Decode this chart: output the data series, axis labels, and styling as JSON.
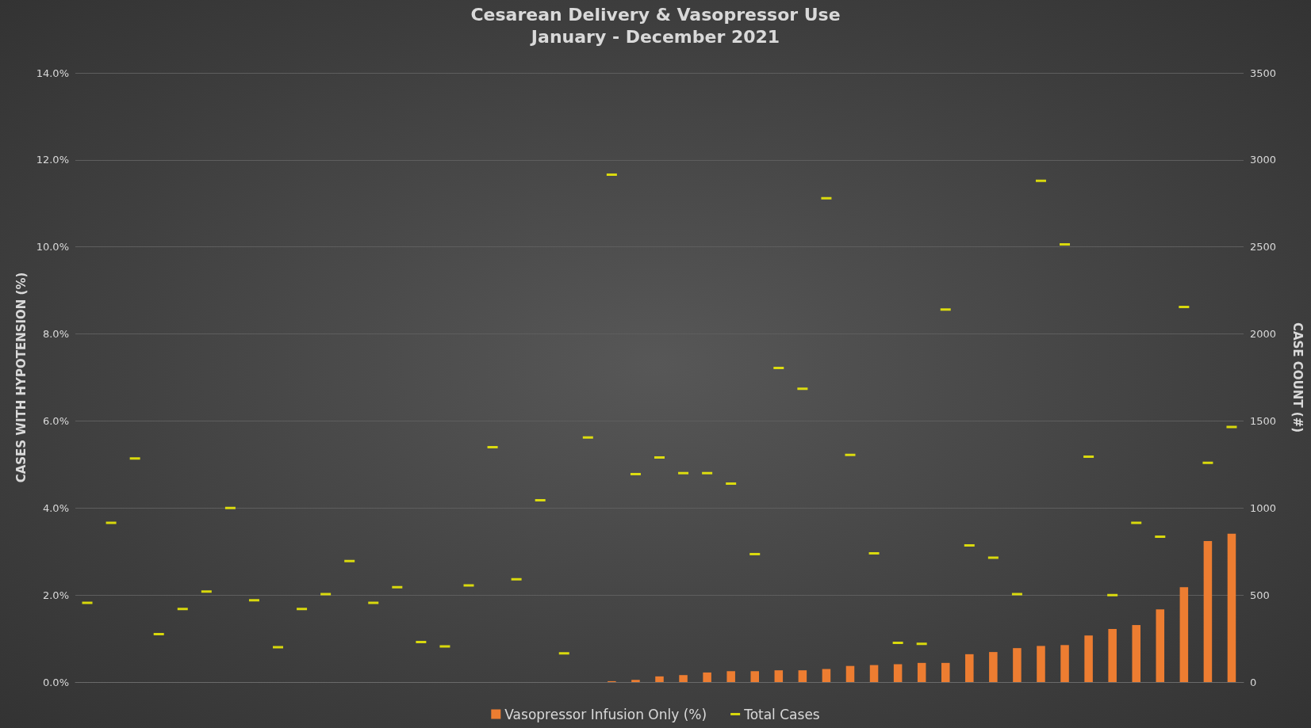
{
  "chart_data": {
    "type": "bar",
    "title": "Cesarean Delivery & Vasopressor Use",
    "subtitle": "January - December 2021",
    "ylabel": "CASES WITH HYPOTENSION (%)",
    "y2label": "CASE COUNT (#)",
    "categories": [
      null,
      null,
      null,
      null,
      null,
      null,
      null,
      null,
      null,
      null,
      null,
      null,
      null,
      null,
      null,
      null,
      null,
      null,
      null,
      null,
      null,
      null,
      null,
      null,
      null,
      null,
      null,
      null,
      null,
      null,
      null,
      null,
      null,
      null,
      null,
      null,
      null,
      null,
      null,
      null,
      null,
      null,
      null,
      null,
      null,
      null,
      null,
      null,
      null
    ],
    "series": [
      {
        "name": "Vasopressor Infusion Only (%)",
        "color": "#ed7d31",
        "values": [
          null,
          null,
          null,
          null,
          null,
          null,
          null,
          null,
          null,
          null,
          null,
          null,
          null,
          null,
          null,
          null,
          null,
          null,
          null,
          null,
          null,
          null,
          0.02,
          0.05,
          0.13,
          0.16,
          0.22,
          0.25,
          0.25,
          0.27,
          0.27,
          0.3,
          0.37,
          0.39,
          0.41,
          0.44,
          0.44,
          0.64,
          0.69,
          0.78,
          0.83,
          0.85,
          1.07,
          1.22,
          1.31,
          1.67,
          2.18,
          3.24,
          3.41
        ]
      },
      {
        "name": "Total Cases",
        "type": "scatter",
        "axis": "y2",
        "color": "#ffff00",
        "values": [
          455,
          915,
          1285,
          275,
          420,
          520,
          1000,
          470,
          200,
          420,
          505,
          695,
          455,
          545,
          230,
          205,
          555,
          1350,
          590,
          1045,
          165,
          1405,
          2915,
          1195,
          1290,
          1200,
          1200,
          1140,
          735,
          1805,
          1685,
          2780,
          1305,
          740,
          225,
          220,
          2140,
          785,
          715,
          505,
          2880,
          2515,
          1295,
          500,
          915,
          835,
          2155,
          1260,
          1465
        ]
      }
    ],
    "ylim": [
      0,
      14
    ],
    "yticks": [
      {
        "value": 0,
        "label": "0.0%"
      },
      {
        "value": 2,
        "label": "2.0%"
      },
      {
        "value": 4,
        "label": "4.0%"
      },
      {
        "value": 6,
        "label": "6.0%"
      },
      {
        "value": 8,
        "label": "8.0%"
      },
      {
        "value": 10,
        "label": "10.0%"
      },
      {
        "value": 12,
        "label": "12.0%"
      },
      {
        "value": 14,
        "label": "14.0%"
      }
    ],
    "y2lim": [
      0,
      3500
    ],
    "y2ticks": [
      0,
      500,
      1000,
      1500,
      2000,
      2500,
      3000,
      3500
    ],
    "grid": "y",
    "legend": "bottom"
  }
}
